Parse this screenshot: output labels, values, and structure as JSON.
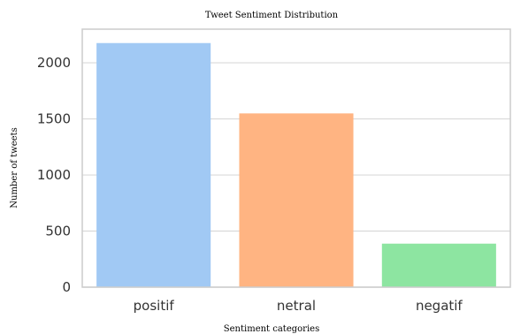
{
  "chart_data": {
    "type": "bar",
    "title": "Tweet Sentiment Distribution",
    "xlabel": "Sentiment categories",
    "ylabel": "Number of tweets",
    "categories": [
      "positif",
      "netral",
      "negatif"
    ],
    "values": [
      2176,
      1549,
      388
    ],
    "colors": [
      "#a1c9f4",
      "#ffb482",
      "#8de5a1"
    ],
    "ylim": [
      0,
      2300
    ],
    "yticks": [
      0,
      500,
      1000,
      1500,
      2000
    ],
    "grid": true,
    "grid_axis": "y",
    "legend": false
  }
}
